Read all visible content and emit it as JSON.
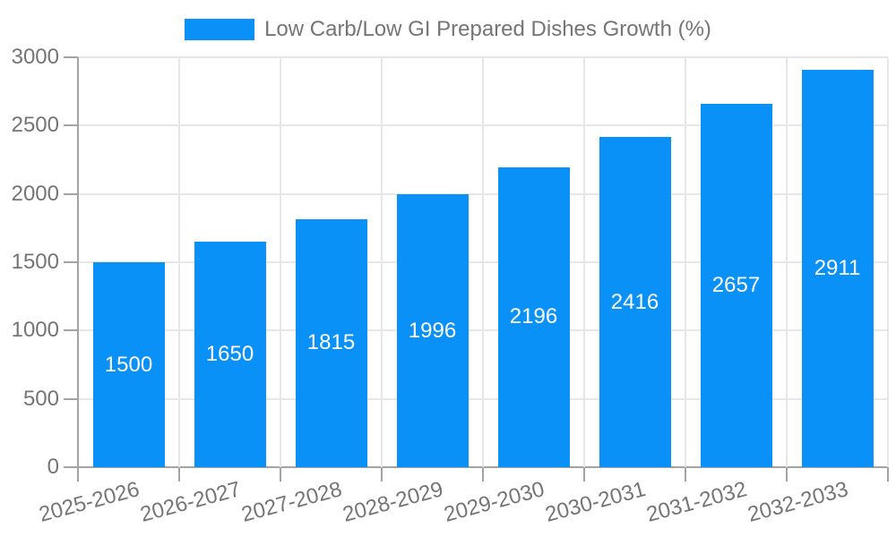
{
  "chart_data": {
    "type": "bar",
    "title": "",
    "legend_position": "top-center",
    "categories": [
      "2025-2026",
      "2026-2027",
      "2027-2028",
      "2028-2029",
      "2029-2030",
      "2030-2031",
      "2031-2032",
      "2032-2033"
    ],
    "series": [
      {
        "name": "Low Carb/Low GI Prepared Dishes Growth (%)",
        "values": [
          1500,
          1650,
          1815,
          1996,
          2196,
          2416,
          2657,
          2911
        ],
        "color": "#0a91f8"
      }
    ],
    "value_labels": {
      "visible": true,
      "position": "inside-center",
      "color": "#ffffff"
    },
    "xlabel": "",
    "ylabel": "",
    "ylim": [
      0,
      3000
    ],
    "ytick_step": 500,
    "yticks": [
      0,
      500,
      1000,
      1500,
      2000,
      2500,
      3000
    ],
    "grid": true,
    "x_tick_rotation_deg": -15,
    "colors": {
      "grid": "#e7e7e7",
      "axis": "#a3a3a3",
      "tick_text": "#757575",
      "legend_text": "#757575",
      "background": "#ffffff"
    }
  }
}
